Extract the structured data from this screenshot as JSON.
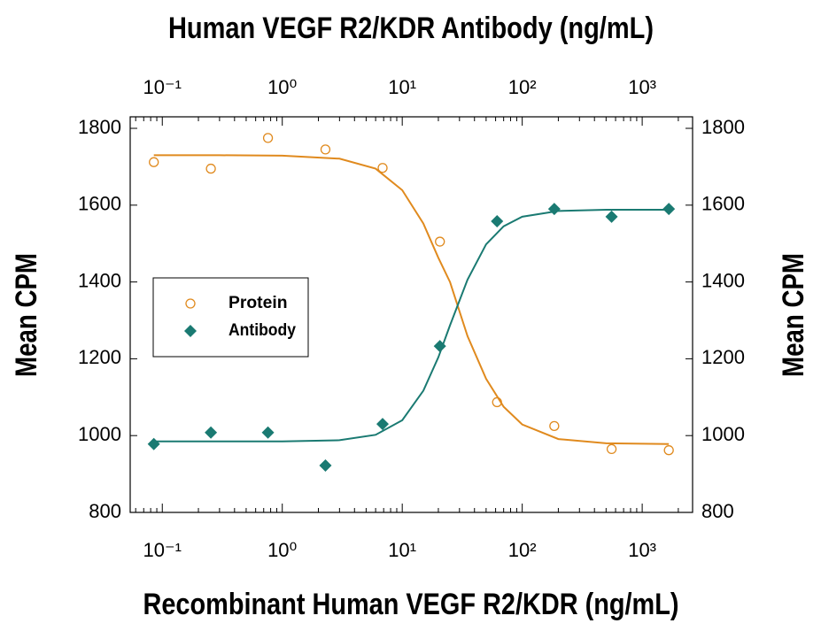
{
  "chart_data": {
    "type": "scatter",
    "title": "Human VEGF R2/KDR Antibody (ng/mL)",
    "x_label": "Recombinant Human VEGF R2/KDR (ng/mL)",
    "y_label": "Mean CPM",
    "y2_label": "Mean CPM",
    "log_x": true,
    "legend": "left",
    "x": [
      0.085,
      0.254,
      0.76,
      2.29,
      6.86,
      20.6,
      61.7,
      185,
      556,
      1667
    ],
    "fit_x": [
      0.085,
      0.3,
      1,
      3,
      6,
      10,
      15,
      20,
      25,
      35,
      50,
      70,
      100,
      200,
      500,
      1667
    ],
    "series": [
      {
        "name": "Protein",
        "color": "#e08a1e",
        "marker": "circle",
        "values": [
          1712,
          1695,
          1775,
          1745,
          1697,
          1505,
          1087,
          1025,
          965,
          962
        ],
        "fit_values": [
          1730,
          1730,
          1729,
          1721,
          1695,
          1639,
          1552,
          1463,
          1400,
          1259,
          1148,
          1075,
          1029,
          991,
          980,
          978
        ]
      },
      {
        "name": "Antibody",
        "color": "#1a7a72",
        "marker": "diamond",
        "values": [
          978,
          1008,
          1008,
          922,
          1030,
          1233,
          1558,
          1590,
          1570,
          1590
        ],
        "fit_values": [
          985,
          985,
          985,
          988,
          1002,
          1040,
          1117,
          1204,
          1287,
          1406,
          1498,
          1545,
          1570,
          1585,
          1588,
          1588
        ]
      }
    ],
    "xlim": [
      0.054,
      2630
    ],
    "xticks": [
      {
        "value": 0.1,
        "label": "10⁻¹"
      },
      {
        "value": 1,
        "label": "10⁰"
      },
      {
        "value": 10,
        "label": "10¹"
      },
      {
        "value": 100,
        "label": "10²"
      },
      {
        "value": 1000,
        "label": "10³"
      }
    ],
    "x2ticks": [
      {
        "value": 0.1,
        "label": "10⁻¹"
      },
      {
        "value": 1,
        "label": "10⁰"
      },
      {
        "value": 10,
        "label": "10¹"
      },
      {
        "value": 100,
        "label": "10²"
      },
      {
        "value": 1000,
        "label": "10³"
      }
    ],
    "ylim": [
      800,
      1830
    ],
    "yticks": [
      800,
      1000,
      1200,
      1400,
      1600,
      1800
    ],
    "y2lim": [
      800,
      1830
    ],
    "y2ticks": [
      800,
      1000,
      1200,
      1400,
      1600,
      1800
    ]
  }
}
